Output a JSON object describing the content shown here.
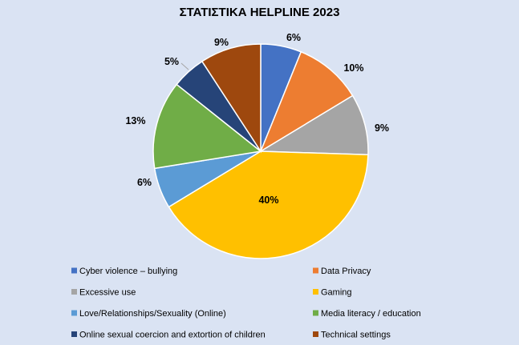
{
  "chart_data": {
    "type": "pie",
    "title": "ΣΤΑΤΙΣΤΙΚΑ HELPLINE 2023",
    "legend_position": "bottom",
    "slices": [
      {
        "label": "Cyber violence – bullying",
        "value": 6,
        "display": "6%",
        "color": "#4472c4"
      },
      {
        "label": "Data Privacy",
        "value": 10,
        "display": "10%",
        "color": "#ed7d31"
      },
      {
        "label": "Excessive use",
        "value": 9,
        "display": "9%",
        "color": "#a5a5a5"
      },
      {
        "label": "Gaming",
        "value": 40,
        "display": "40%",
        "color": "#ffc000"
      },
      {
        "label": "Love/Relationships/Sexuality (Online)",
        "value": 6,
        "display": "6%",
        "color": "#5b9bd5"
      },
      {
        "label": "Media literacy / education",
        "value": 13,
        "display": "13%",
        "color": "#70ad47"
      },
      {
        "label": "Online sexual coercion and extortion of children",
        "value": 5,
        "display": "5%",
        "color": "#264478"
      },
      {
        "label": "Technical settings",
        "value": 9,
        "display": "9%",
        "color": "#9e480e"
      }
    ]
  }
}
